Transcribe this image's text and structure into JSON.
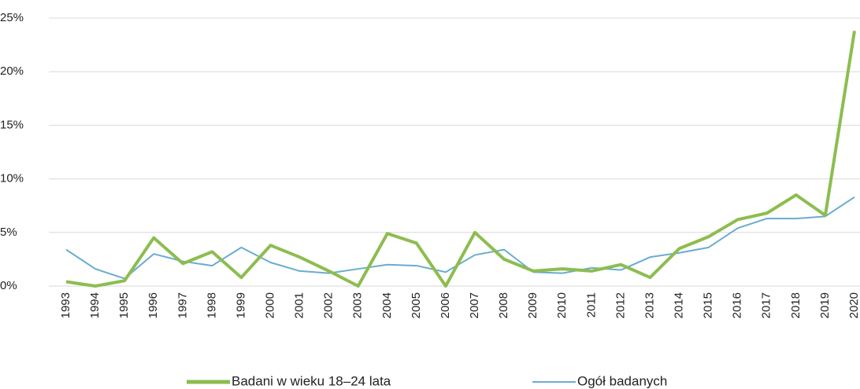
{
  "chart_data": {
    "type": "line",
    "categories": [
      "1993",
      "1994",
      "1995",
      "1996",
      "1997",
      "1998",
      "1999",
      "2000",
      "2001",
      "2002",
      "2003",
      "2004",
      "2005",
      "2006",
      "2007",
      "2008",
      "2009",
      "2010",
      "2011",
      "2012",
      "2013",
      "2014",
      "2015",
      "2016",
      "2017",
      "2018",
      "2019",
      "2020"
    ],
    "series": [
      {
        "name": "Badani w wieku 18–24 lata",
        "color": "#8cbd4f",
        "values": [
          0.4,
          0,
          0.5,
          4.5,
          2.1,
          3.2,
          0.8,
          3.8,
          2.7,
          1.4,
          0,
          4.9,
          4.0,
          0,
          5.0,
          2.5,
          1.4,
          1.6,
          1.4,
          2.0,
          0.8,
          3.5,
          4.6,
          6.2,
          6.8,
          8.5,
          6.6,
          23.8
        ]
      },
      {
        "name": "Ogół badanych",
        "color": "#6aacd0",
        "values": [
          3.4,
          1.6,
          0.7,
          3.0,
          2.3,
          1.9,
          3.6,
          2.2,
          1.4,
          1.2,
          1.6,
          2.0,
          1.9,
          1.3,
          2.9,
          3.4,
          1.3,
          1.2,
          1.7,
          1.5,
          2.7,
          3.1,
          3.6,
          5.4,
          6.3,
          6.3,
          6.5,
          8.3
        ]
      }
    ],
    "ylim": [
      0,
      25
    ],
    "yticks": [
      {
        "value": 0,
        "label": "0%"
      },
      {
        "value": 5,
        "label": "5%"
      },
      {
        "value": 10,
        "label": "10%"
      },
      {
        "value": 15,
        "label": "15%"
      },
      {
        "value": 20,
        "label": "20%"
      },
      {
        "value": 25,
        "label": "25%"
      }
    ],
    "grid": true,
    "legend": "bottom"
  }
}
